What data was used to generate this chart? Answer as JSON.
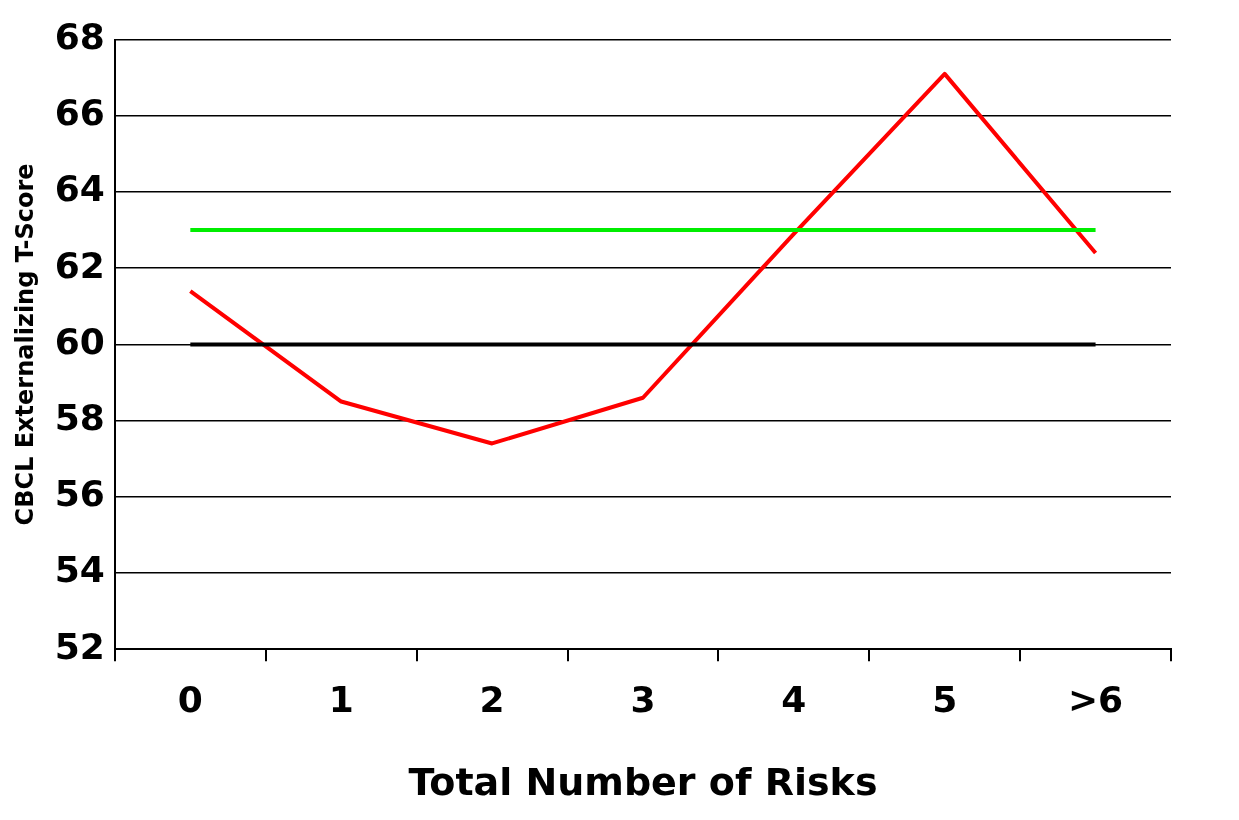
{
  "chart_data": {
    "type": "line",
    "xlabel": "Total Number of Risks",
    "ylabel": "CBCL Externalizing T-Score",
    "categories": [
      "0",
      "1",
      "2",
      "3",
      "4",
      "5",
      ">6"
    ],
    "series": [
      {
        "color": "#ff0000",
        "values": [
          61.4,
          58.5,
          57.4,
          58.6,
          62.9,
          67.1,
          62.4
        ]
      }
    ],
    "ref_lines": [
      {
        "axis": "y",
        "value": 63,
        "color": "#00ee00"
      },
      {
        "axis": "y",
        "value": 60,
        "color": "#000000"
      }
    ],
    "ylim": [
      52,
      68
    ],
    "yticks": [
      52,
      54,
      56,
      58,
      60,
      62,
      64,
      66,
      68
    ],
    "grid": "y",
    "legend": false,
    "marker": "none",
    "line_style": "solid"
  }
}
